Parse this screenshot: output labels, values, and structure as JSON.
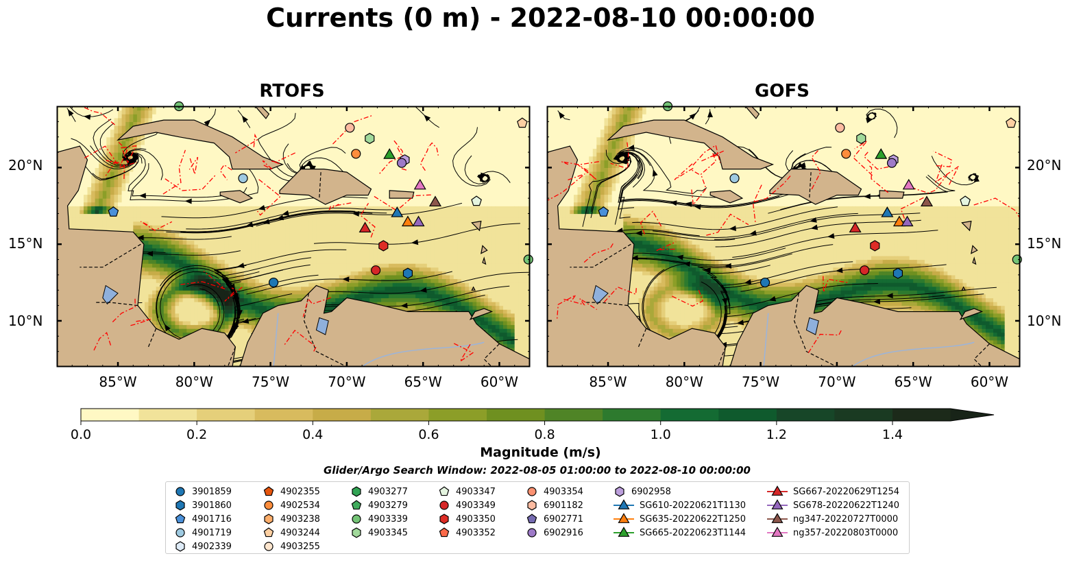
{
  "title": "Currents (0 m) - 2022-08-10 00:00:00",
  "panels": [
    {
      "title": "RTOFS"
    },
    {
      "title": "GOFS"
    }
  ],
  "lat_labels": [
    "20°N",
    "15°N",
    "10°N"
  ],
  "lon_labels": [
    "85°W",
    "80°W",
    "75°W",
    "70°W",
    "65°W",
    "60°W"
  ],
  "colorbar": {
    "label": "Magnitude (m/s)",
    "ticks": [
      "0.0",
      "0.2",
      "0.4",
      "0.6",
      "0.8",
      "1.0",
      "1.2",
      "1.4"
    ],
    "colors": [
      "#fff8c4",
      "#f1e39a",
      "#e5cf7a",
      "#d8bb5e",
      "#c7ac48",
      "#aaa83a",
      "#8c9e28",
      "#6f9020",
      "#4f8426",
      "#2d7a2e",
      "#146b33",
      "#0f5a2d",
      "#174628",
      "#1a3a22",
      "#1c2a1a",
      "#182418"
    ]
  },
  "search_window": "Glider/Argo Search Window: 2022-08-05 01:00:00 to 2022-08-10 00:00:00",
  "legend": {
    "columns": [
      [
        {
          "label": "3901859",
          "marker": "circle",
          "color": "#1f77b4"
        },
        {
          "label": "3901860",
          "marker": "hexagon",
          "color": "#1f77b4"
        },
        {
          "label": "4901716",
          "marker": "pentagon",
          "color": "#4a90d9"
        },
        {
          "label": "4901719",
          "marker": "circle",
          "color": "#9ecae1"
        },
        {
          "label": "4902339",
          "marker": "hexagon",
          "color": "#deebf7"
        }
      ],
      [
        {
          "label": "4902355",
          "marker": "pentagon",
          "color": "#e6550d"
        },
        {
          "label": "4902534",
          "marker": "circle",
          "color": "#fd8d3c"
        },
        {
          "label": "4903238",
          "marker": "hexagon",
          "color": "#fdae6b"
        },
        {
          "label": "4903244",
          "marker": "pentagon",
          "color": "#fdd0a2"
        },
        {
          "label": "4903255",
          "marker": "circle",
          "color": "#fee6ce"
        }
      ],
      [
        {
          "label": "4903277",
          "marker": "hexagon",
          "color": "#31a354"
        },
        {
          "label": "4903279",
          "marker": "pentagon",
          "color": "#41ab5d"
        },
        {
          "label": "4903339",
          "marker": "circle",
          "color": "#74c476"
        },
        {
          "label": "4903345",
          "marker": "hexagon",
          "color": "#a1d99b"
        }
      ],
      [
        {
          "label": "4903347",
          "marker": "pentagon",
          "color": "#e5f5e0"
        },
        {
          "label": "4903349",
          "marker": "circle",
          "color": "#d62728"
        },
        {
          "label": "4903350",
          "marker": "hexagon",
          "color": "#de2d26"
        },
        {
          "label": "4903352",
          "marker": "pentagon",
          "color": "#fb6a4a"
        }
      ],
      [
        {
          "label": "4903354",
          "marker": "circle",
          "color": "#fc9272"
        },
        {
          "label": "6901182",
          "marker": "hexagon",
          "color": "#fcbba1"
        },
        {
          "label": "6902771",
          "marker": "pentagon",
          "color": "#756bb1"
        },
        {
          "label": "6902916",
          "marker": "circle",
          "color": "#9e7ac8"
        }
      ],
      [
        {
          "label": "6902958",
          "marker": "hexagon",
          "color": "#bc9fdc"
        },
        {
          "label": "SG610-20220621T1130",
          "marker": "triangle",
          "color": "#1f77b4"
        },
        {
          "label": "SG635-20220622T1250",
          "marker": "triangle",
          "color": "#ff7f0e"
        },
        {
          "label": "SG665-20220623T1144",
          "marker": "triangle",
          "color": "#2ca02c"
        }
      ],
      [
        {
          "label": "SG667-20220629T1254",
          "marker": "triangle",
          "color": "#d62728"
        },
        {
          "label": "SG678-20220622T1240",
          "marker": "triangle",
          "color": "#9467bd"
        },
        {
          "label": "ng347-20220727T0000",
          "marker": "triangle",
          "color": "#8c564b"
        },
        {
          "label": "ng357-20220803T0000",
          "marker": "triangle",
          "color": "#e377c2"
        }
      ]
    ]
  }
}
